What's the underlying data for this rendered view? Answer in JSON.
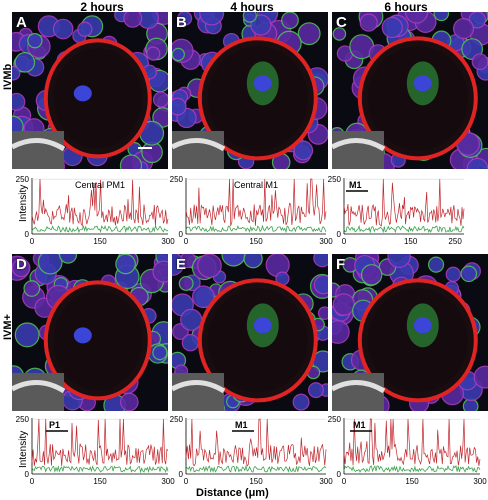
{
  "columns": [
    "2 hours",
    "4 hours",
    "6 hours"
  ],
  "rows": [
    "IVMb",
    "IVM+"
  ],
  "panels": [
    {
      "label": "A"
    },
    {
      "label": "B"
    },
    {
      "label": "C"
    },
    {
      "label": "D"
    },
    {
      "label": "E"
    },
    {
      "label": "F"
    }
  ],
  "colors": {
    "red": "#c0272d",
    "green": "#3aa34a",
    "grid": "#cfcfcf"
  },
  "y_axis_title": "Intensity",
  "x_axis_title": "Distance (μm)",
  "chart_data": [
    {
      "type": "line",
      "annotation": "Central PM1",
      "xlim": [
        0,
        300
      ],
      "xticks": [
        "0",
        "150",
        "300"
      ],
      "ylim": [
        0,
        250
      ],
      "yticks": [
        "0",
        "250"
      ],
      "marker": null
    },
    {
      "type": "line",
      "annotation": "Central M1",
      "xlim": [
        0,
        300
      ],
      "xticks": [
        "0",
        "150",
        "300"
      ],
      "ylim": [
        0,
        250
      ],
      "yticks": [
        "0",
        "250"
      ],
      "marker": null
    },
    {
      "type": "line",
      "annotation": "M1",
      "xlim": [
        0,
        270
      ],
      "xticks": [
        "0",
        "150",
        "250"
      ],
      "ylim": [
        0,
        250
      ],
      "yticks": [
        "0",
        "250"
      ],
      "marker": "M1"
    },
    {
      "type": "line",
      "annotation": "P1",
      "xlim": [
        0,
        300
      ],
      "xticks": [
        "0",
        "150",
        "300"
      ],
      "ylim": [
        0,
        250
      ],
      "yticks": [
        "0",
        "250"
      ],
      "marker": "P1"
    },
    {
      "type": "line",
      "annotation": "M1",
      "xlim": [
        0,
        300
      ],
      "xticks": [
        "0",
        "150",
        "300"
      ],
      "ylim": [
        0,
        250
      ],
      "yticks": [
        "0",
        "250"
      ],
      "marker": "M1"
    },
    {
      "type": "line",
      "annotation": "M1",
      "xlim": [
        0,
        300
      ],
      "xticks": [
        "0",
        "150",
        "300"
      ],
      "ylim": [
        0,
        250
      ],
      "yticks": [
        "0",
        "250"
      ],
      "marker": "M1"
    }
  ]
}
